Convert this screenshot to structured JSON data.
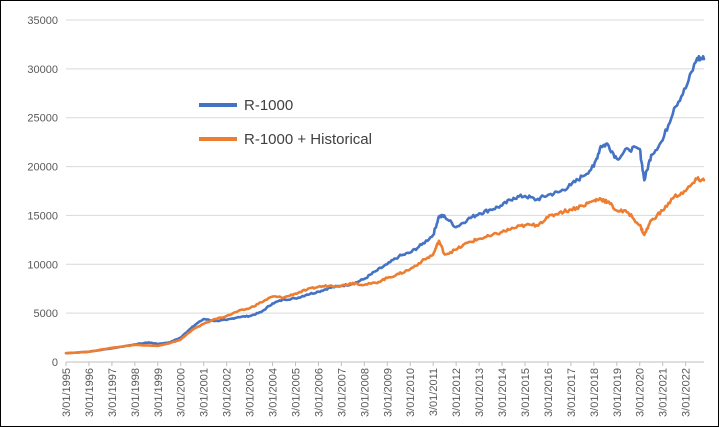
{
  "chart_data": {
    "type": "line",
    "title": "",
    "xlabel": "",
    "ylabel": "",
    "ylim": [
      0,
      35000
    ],
    "y_ticks": [
      0,
      5000,
      10000,
      15000,
      20000,
      25000,
      30000,
      35000
    ],
    "y_tick_labels": [
      "0",
      "5000",
      "10000",
      "15000",
      "20000",
      "25000",
      "30000",
      "35000"
    ],
    "x_range": [
      1995.0,
      2022.8
    ],
    "x_tick_labels": [
      "3/01/1995",
      "3/01/1996",
      "3/01/1997",
      "3/01/1998",
      "3/01/1999",
      "3/01/2000",
      "3/01/2001",
      "3/01/2002",
      "3/01/2003",
      "3/01/2004",
      "3/01/2005",
      "3/01/2006",
      "3/01/2007",
      "3/01/2008",
      "3/01/2009",
      "3/01/2010",
      "3/01/2011",
      "3/01/2012",
      "3/01/2013",
      "3/01/2014",
      "3/01/2015",
      "3/01/2016",
      "3/01/2017",
      "3/01/2018",
      "3/01/2019",
      "3/01/2020",
      "3/01/2021",
      "3/01/2022"
    ],
    "grid": true,
    "legend_position": "upper-left-inside",
    "series": [
      {
        "name": "R-1000",
        "color": "#4472C4",
        "x": [
          1995.0,
          1996.0,
          1997.0,
          1998.0,
          1998.6,
          1999.0,
          1999.5,
          2000.0,
          2000.5,
          2001.0,
          2001.5,
          2002.0,
          2002.5,
          2003.0,
          2003.5,
          2004.0,
          2004.5,
          2005.0,
          2005.5,
          2006.0,
          2006.5,
          2007.0,
          2007.5,
          2008.0,
          2008.5,
          2009.0,
          2009.5,
          2010.0,
          2010.5,
          2011.0,
          2011.25,
          2011.5,
          2012.0,
          2012.5,
          2013.0,
          2013.5,
          2014.0,
          2014.5,
          2015.0,
          2015.5,
          2016.0,
          2016.5,
          2017.0,
          2017.5,
          2018.0,
          2018.3,
          2018.6,
          2019.0,
          2019.5,
          2020.0,
          2020.2,
          2020.5,
          2021.0,
          2021.5,
          2022.0,
          2022.5,
          2022.8
        ],
        "values": [
          900,
          1050,
          1400,
          1800,
          2000,
          1850,
          2000,
          2500,
          3600,
          4400,
          4200,
          4300,
          4600,
          4700,
          5100,
          6000,
          6400,
          6500,
          6900,
          7200,
          7600,
          7800,
          8000,
          8500,
          9300,
          10000,
          10800,
          11200,
          12000,
          13000,
          14900,
          14900,
          13800,
          14600,
          15200,
          15600,
          16000,
          16800,
          17000,
          16600,
          17100,
          17400,
          18100,
          19000,
          20000,
          22100,
          22300,
          20800,
          21800,
          21800,
          18600,
          21200,
          22700,
          26000,
          28000,
          31100,
          31000
        ]
      },
      {
        "name": "R-1000 + Historical",
        "color": "#ED7D31",
        "x": [
          1995.0,
          1996.0,
          1997.0,
          1998.0,
          1998.6,
          1999.0,
          1999.5,
          2000.0,
          2000.5,
          2001.0,
          2001.5,
          2002.0,
          2002.5,
          2003.0,
          2003.5,
          2004.0,
          2004.5,
          2005.0,
          2005.5,
          2006.0,
          2006.5,
          2007.0,
          2007.5,
          2008.0,
          2008.5,
          2009.0,
          2009.5,
          2010.0,
          2010.5,
          2011.0,
          2011.25,
          2011.5,
          2012.0,
          2012.5,
          2013.0,
          2013.5,
          2014.0,
          2014.5,
          2015.0,
          2015.5,
          2016.0,
          2016.5,
          2017.0,
          2017.5,
          2018.0,
          2018.3,
          2018.6,
          2019.0,
          2019.5,
          2020.0,
          2020.2,
          2020.5,
          2021.0,
          2021.5,
          2022.0,
          2022.5,
          2022.8
        ],
        "values": [
          900,
          1050,
          1450,
          1750,
          1700,
          1650,
          1900,
          2300,
          3300,
          3900,
          4400,
          4700,
          5200,
          5500,
          6100,
          6700,
          6600,
          7000,
          7400,
          7700,
          7800,
          7800,
          8100,
          7900,
          8100,
          8600,
          9000,
          9500,
          10300,
          11000,
          12400,
          11000,
          11500,
          12200,
          12600,
          12900,
          13300,
          13700,
          14000,
          14000,
          14800,
          15300,
          15600,
          16000,
          16500,
          16700,
          16400,
          15500,
          15300,
          14000,
          13000,
          14500,
          15500,
          16900,
          17500,
          18700,
          18600
        ]
      }
    ]
  }
}
